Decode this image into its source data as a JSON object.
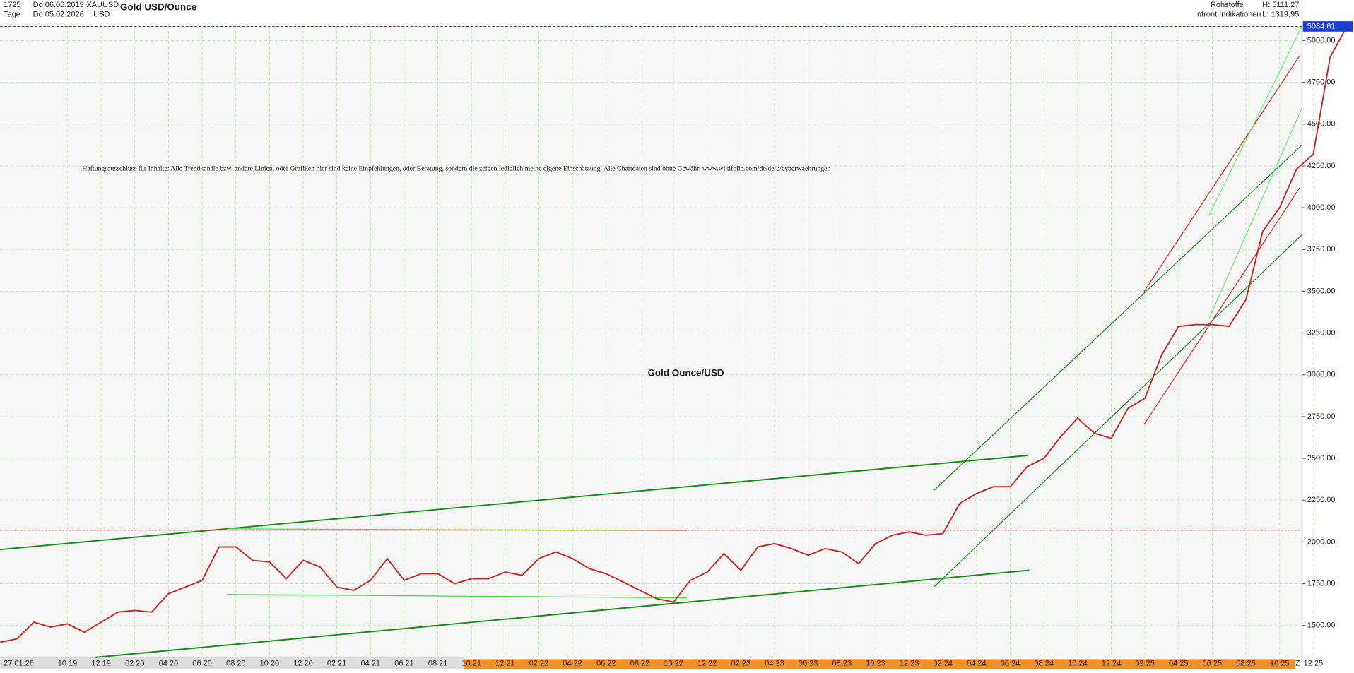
{
  "header": {
    "count": "1725",
    "from_date": "Do 06.06.2019",
    "symbol": "XAUUSD",
    "title": "Gold USD/Ounce",
    "period": "Tage",
    "to_date": "Do 05.02.2026",
    "currency": "USD",
    "group": "Rohstoffe",
    "high": "H: 5111.27",
    "source": "Infront Indikationen",
    "low": "L: 1319.95"
  },
  "disclaimer": "Haftungsausschluss für Inhalte: Alle Trendkanäle bzw. andere Linien, oder Grafiken hier sind keine Empfehlungen, oder Beratung, sondern die zeigen lediglich meine eigene Einschätzung. Alle Chartdaten sind ohne Gewähr.  www.wikifolio.com/de/de/p/cyberwaehrungen",
  "chart_data": {
    "type": "line",
    "title": "Gold Ounce/USD",
    "date_marker": "27.01.26",
    "axis_end": "Z",
    "categories": [
      null,
      null,
      null,
      null,
      "10 19",
      null,
      "12 19",
      null,
      "02 20",
      null,
      "04 20",
      null,
      "06 20",
      null,
      "08 20",
      null,
      "10 20",
      null,
      "12 20",
      null,
      "02 21",
      null,
      "04 21",
      null,
      "06 21",
      null,
      "08 21",
      null,
      "10 21",
      null,
      "12 21",
      null,
      "02 22",
      null,
      "04 22",
      null,
      "06 22",
      null,
      "08 22",
      null,
      "10 22",
      null,
      "12 22",
      null,
      "02 23",
      null,
      "04 23",
      null,
      "06 23",
      null,
      "08 23",
      null,
      "10 23",
      null,
      "12 23",
      null,
      "02 24",
      null,
      "04 24",
      null,
      "06 24",
      null,
      "08 24",
      null,
      "10 24",
      null,
      "12 24",
      null,
      "02 25",
      null,
      "04 25",
      null,
      "06 25",
      null,
      "08 25",
      null,
      "10 25",
      null,
      "12 25",
      null,
      null
    ],
    "series": [
      {
        "name": "XAUUSD",
        "color": "#c62a24",
        "values": [
          1400,
          1420,
          1520,
          1490,
          1510,
          1460,
          1520,
          1580,
          1590,
          1580,
          1690,
          1730,
          1770,
          1970,
          1970,
          1890,
          1880,
          1780,
          1890,
          1850,
          1730,
          1710,
          1770,
          1900,
          1770,
          1810,
          1810,
          1750,
          1780,
          1780,
          1820,
          1800,
          1900,
          1940,
          1900,
          1840,
          1810,
          1760,
          1710,
          1660,
          1640,
          1770,
          1820,
          1930,
          1830,
          1970,
          1990,
          1960,
          1920,
          1960,
          1940,
          1870,
          1990,
          2040,
          2060,
          2040,
          2050,
          2230,
          2290,
          2330,
          2330,
          2450,
          2500,
          2630,
          2740,
          2650,
          2620,
          2800,
          2860,
          3120,
          3290,
          3300,
          3300,
          3290,
          3450,
          3860,
          4000,
          4230,
          4320,
          4900,
          5084.61
        ]
      }
    ],
    "last_price": 5084.61,
    "ylim": [
      1309,
      5088
    ],
    "yticks": [
      {
        "value": 1500,
        "label": "1500.00"
      },
      {
        "value": 1750,
        "label": "1750.00"
      },
      {
        "value": 2000,
        "label": "2000.00"
      },
      {
        "value": 2250,
        "label": "2250.00"
      },
      {
        "value": 2500,
        "label": "2500.00"
      },
      {
        "value": 2750,
        "label": "2750.00"
      },
      {
        "value": 3000,
        "label": "3000.00"
      },
      {
        "value": 3250,
        "label": "3250.00"
      },
      {
        "value": 3500,
        "label": "3500.00"
      },
      {
        "value": 3750,
        "label": "3750.00"
      },
      {
        "value": 4000,
        "label": "4000.00"
      },
      {
        "value": 4250,
        "label": "4250.00"
      },
      {
        "value": 4500,
        "label": "4500.00"
      },
      {
        "value": 4750,
        "label": "4750.00"
      },
      {
        "value": 5000,
        "label": "5000.00"
      }
    ],
    "hline": 2070,
    "hline_color": "#e03030",
    "last_color": "#1a3fd0",
    "grid": true
  }
}
